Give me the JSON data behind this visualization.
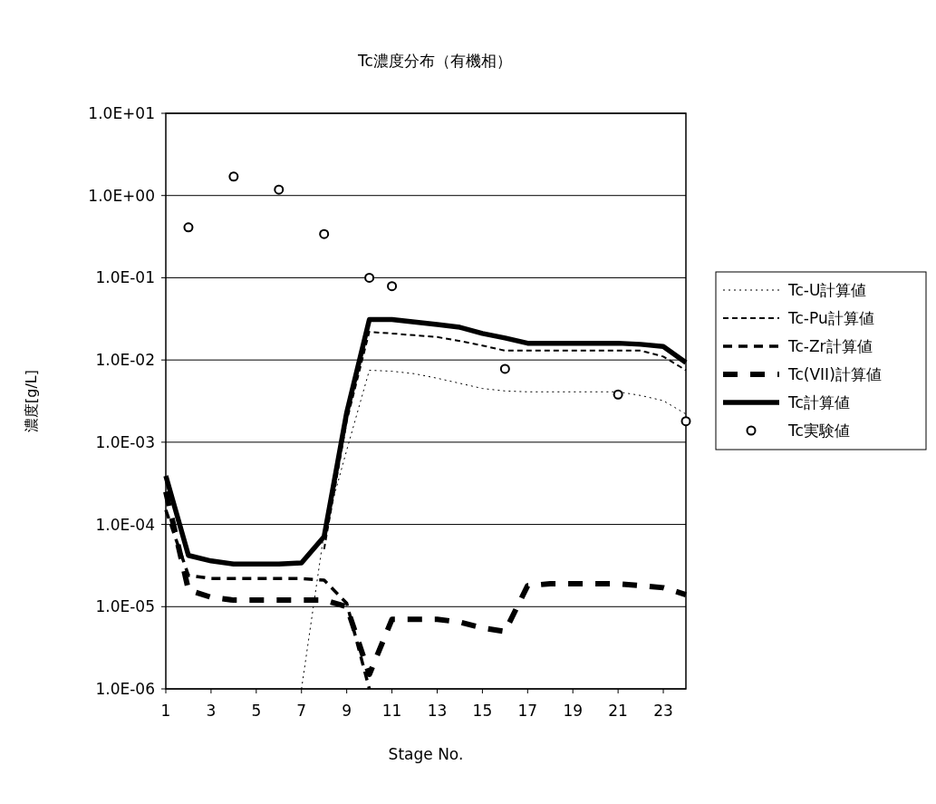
{
  "chart_data": {
    "type": "line",
    "title": "Tc濃度分布（有機相）",
    "xlabel": "Stage No.",
    "ylabel": "濃度[g/L]",
    "xlim": [
      1,
      24
    ],
    "xticks": [
      1,
      3,
      5,
      7,
      9,
      11,
      13,
      15,
      17,
      19,
      21,
      23
    ],
    "ylim": [
      1e-06,
      10
    ],
    "yticks": [
      {
        "value": 1e-06,
        "label": "1.0E-06"
      },
      {
        "value": 1e-05,
        "label": "1.0E-05"
      },
      {
        "value": 0.0001,
        "label": "1.0E-04"
      },
      {
        "value": 0.001,
        "label": "1.0E-03"
      },
      {
        "value": 0.01,
        "label": "1.0E-02"
      },
      {
        "value": 0.1,
        "label": "1.0E-01"
      },
      {
        "value": 1,
        "label": "1.0E+00"
      },
      {
        "value": 10,
        "label": "1.0E+01"
      }
    ],
    "log": "y",
    "grid": "y",
    "legend": "right",
    "x": [
      1,
      2,
      3,
      4,
      5,
      6,
      7,
      8,
      9,
      10,
      11,
      12,
      13,
      14,
      15,
      16,
      17,
      18,
      19,
      20,
      21,
      22,
      23,
      24
    ],
    "series": [
      {
        "name": "Tc-U計算値",
        "color": "#000000",
        "line_style": "dotted",
        "values": [
          null,
          null,
          null,
          null,
          null,
          null,
          1e-06,
          8e-05,
          0.0008,
          0.0075,
          0.0073,
          0.0068,
          0.006,
          0.0052,
          0.0045,
          0.0042,
          0.0041,
          0.0041,
          0.0041,
          0.0041,
          0.0041,
          0.0037,
          0.0032,
          0.0022
        ]
      },
      {
        "name": "Tc-Pu計算値",
        "color": "#000000",
        "line_style": "dashed",
        "values": [
          null,
          null,
          null,
          null,
          null,
          null,
          null,
          5e-05,
          0.0018,
          0.022,
          0.021,
          0.02,
          0.019,
          0.017,
          0.015,
          0.013,
          0.013,
          0.013,
          0.013,
          0.013,
          0.013,
          0.013,
          0.011,
          0.0075
        ]
      },
      {
        "name": "Tc-Zr計算値",
        "color": "#000000",
        "line_style": "dashed",
        "values": [
          0.00015,
          2.4e-05,
          2.2e-05,
          2.2e-05,
          2.2e-05,
          2.2e-05,
          2.2e-05,
          2.1e-05,
          1.1e-05,
          1e-06,
          null,
          null,
          null,
          null,
          null,
          null,
          null,
          null,
          null,
          null,
          null,
          null,
          null,
          null
        ]
      },
      {
        "name": "Tc(VII)計算値",
        "color": "#000000",
        "line_style": "dashed",
        "values": [
          0.00025,
          1.6e-05,
          1.3e-05,
          1.2e-05,
          1.2e-05,
          1.2e-05,
          1.2e-05,
          1.2e-05,
          1e-05,
          1.5e-06,
          7e-06,
          7e-06,
          7e-06,
          6.5e-06,
          5.5e-06,
          5e-06,
          1.8e-05,
          1.9e-05,
          1.9e-05,
          1.9e-05,
          1.9e-05,
          1.8e-05,
          1.7e-05,
          1.4e-05
        ]
      },
      {
        "name": "Tc計算値",
        "color": "#000000",
        "line_style": "solid",
        "values": [
          0.00039,
          4.2e-05,
          3.6e-05,
          3.3e-05,
          3.3e-05,
          3.3e-05,
          3.4e-05,
          7.1e-05,
          0.0023,
          0.031,
          0.031,
          0.029,
          0.027,
          0.025,
          0.021,
          0.0185,
          0.016,
          0.016,
          0.016,
          0.016,
          0.016,
          0.0155,
          0.0146,
          0.0093
        ]
      },
      {
        "name": "Tc実験値",
        "type": "scatter",
        "marker": "circle",
        "color": "#000000",
        "x": [
          2,
          4,
          6,
          8,
          10,
          11,
          16,
          21,
          24
        ],
        "values": [
          0.41,
          1.7,
          1.18,
          0.34,
          0.1,
          0.079,
          0.0078,
          0.0038,
          0.0018
        ]
      }
    ]
  }
}
